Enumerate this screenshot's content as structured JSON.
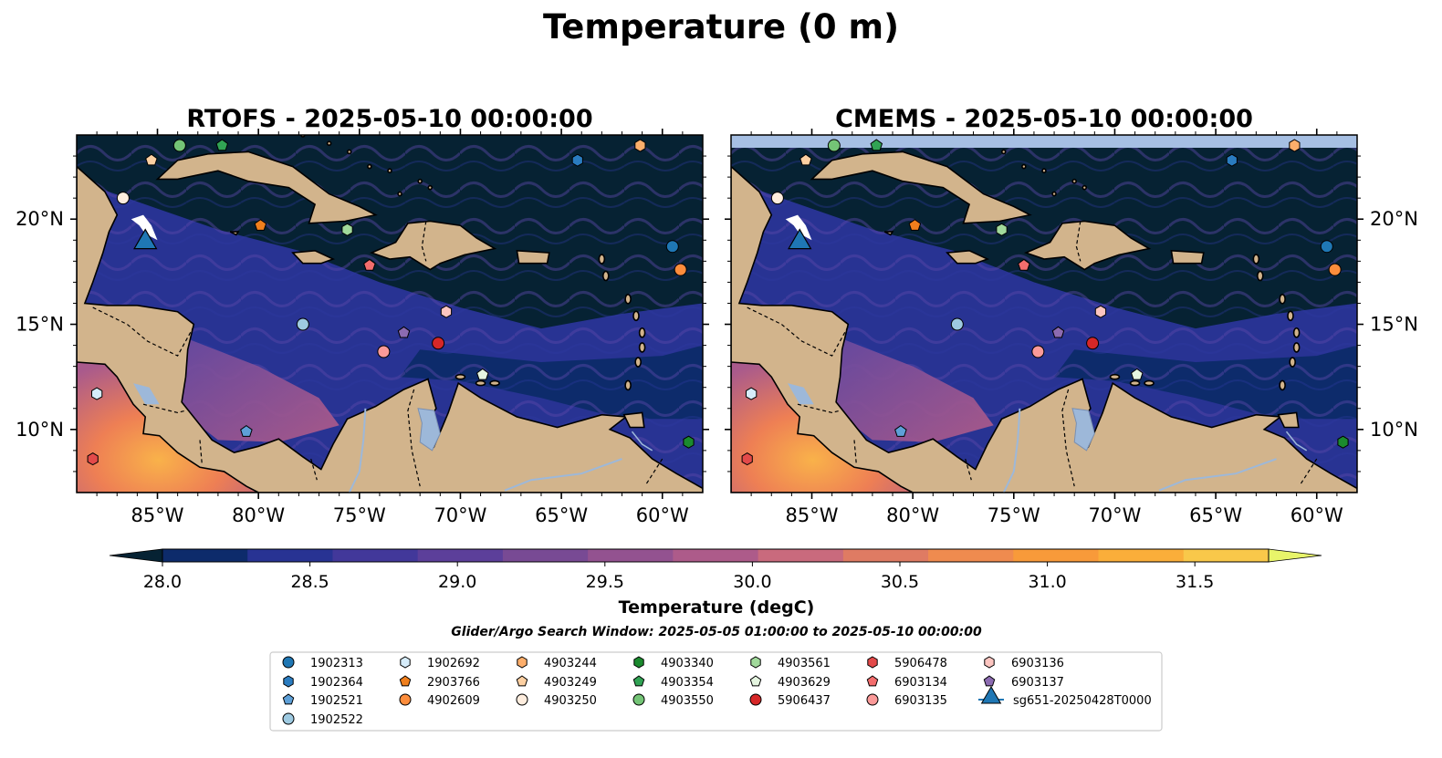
{
  "figure": {
    "suptitle": "Temperature (0 m)",
    "search_window_text": "Glider/Argo Search Window: 2025-05-05 01:00:00 to 2025-05-10 00:00:00"
  },
  "colors": {
    "land": "#d2b48c",
    "ocean_dark": "#062233",
    "coast": "#000000",
    "rivers_lakes": "#9db8d9",
    "glider_track": "#ffffff",
    "missing_data_band": "#a6bfe3"
  },
  "colorbar": {
    "label": "Temperature (degC)",
    "ticks": [
      "28.0",
      "28.5",
      "29.0",
      "29.5",
      "30.0",
      "30.5",
      "31.0",
      "31.5"
    ],
    "vmin": 28.0,
    "vmax": 31.75,
    "level_step": 0.25,
    "extend": "both",
    "colors": [
      "#062233",
      "#0d2b6b",
      "#283393",
      "#42389a",
      "#5c3f9a",
      "#784a94",
      "#935290",
      "#ad5b8a",
      "#c96a7d",
      "#df7b63",
      "#ef8b4f",
      "#f89a3a",
      "#faae3a",
      "#f9c84a",
      "#e8f56a"
    ]
  },
  "chart_data": [
    {
      "type": "map",
      "title": "RTOFS - 2025-05-10 00:00:00",
      "field": "Temperature (degC)",
      "extent_lon": [
        -89,
        -58
      ],
      "extent_lat": [
        7,
        24
      ],
      "xtick_labels": [
        "85°W",
        "80°W",
        "75°W",
        "70°W",
        "65°W",
        "60°W"
      ],
      "ytick_labels": [
        "10°N",
        "15°N",
        "20°N"
      ],
      "ytick_side": "left",
      "missing_band_top": false
    },
    {
      "type": "map",
      "title": "CMEMS - 2025-05-10 00:00:00",
      "field": "Temperature (degC)",
      "extent_lon": [
        -89,
        -58
      ],
      "extent_lat": [
        7,
        24
      ],
      "xtick_labels": [
        "85°W",
        "80°W",
        "75°W",
        "70°W",
        "65°W",
        "60°W"
      ],
      "ytick_labels": [
        "10°N",
        "15°N",
        "20°N"
      ],
      "ytick_side": "right",
      "missing_band_top": true
    }
  ],
  "floats": [
    {
      "id": "1902313",
      "marker": "circle",
      "color": "#1f77b4",
      "lon": -59.5,
      "lat": 18.7
    },
    {
      "id": "1902364",
      "marker": "hexagon",
      "color": "#2a7cc0",
      "lon": -64.2,
      "lat": 22.8
    },
    {
      "id": "1902521",
      "marker": "pentagon",
      "color": "#5ea0d8",
      "lon": -80.6,
      "lat": 9.9
    },
    {
      "id": "1902522",
      "marker": "circle",
      "color": "#9ecae1",
      "lon": -77.8,
      "lat": 15.0
    },
    {
      "id": "1902692",
      "marker": "hexagon",
      "color": "#d6ecfa",
      "lon": -88.0,
      "lat": 11.7
    },
    {
      "id": "2903766",
      "marker": "pentagon",
      "color": "#f07f1d",
      "lon": -79.9,
      "lat": 19.7
    },
    {
      "id": "4902609",
      "marker": "circle",
      "color": "#fd8d3c",
      "lon": -59.1,
      "lat": 17.6
    },
    {
      "id": "4903244",
      "marker": "hexagon",
      "color": "#fdae6b",
      "lon": -61.1,
      "lat": 23.5
    },
    {
      "id": "4903249",
      "marker": "pentagon",
      "color": "#fdd0a2",
      "lon": -85.3,
      "lat": 22.8
    },
    {
      "id": "4903250",
      "marker": "circle",
      "color": "#feedde",
      "lon": -86.7,
      "lat": 21.0
    },
    {
      "id": "4903340",
      "marker": "hexagon",
      "color": "#1b8a2e",
      "lon": -58.7,
      "lat": 9.4
    },
    {
      "id": "4903354",
      "marker": "pentagon",
      "color": "#31a354",
      "lon": -81.8,
      "lat": 23.5
    },
    {
      "id": "4903550",
      "marker": "circle",
      "color": "#74c476",
      "lon": -83.9,
      "lat": 23.5
    },
    {
      "id": "4903561",
      "marker": "hexagon",
      "color": "#a1d99b",
      "lon": -75.6,
      "lat": 19.5
    },
    {
      "id": "4903629",
      "marker": "pentagon",
      "color": "#e5f5e0",
      "lon": -68.9,
      "lat": 12.6
    },
    {
      "id": "5906437",
      "marker": "circle",
      "color": "#d62728",
      "lon": -71.1,
      "lat": 14.1
    },
    {
      "id": "5906478",
      "marker": "hexagon",
      "color": "#e34a4a",
      "lon": -88.2,
      "lat": 8.6
    },
    {
      "id": "6903134",
      "marker": "pentagon",
      "color": "#f46d6d",
      "lon": -74.5,
      "lat": 17.8
    },
    {
      "id": "6903135",
      "marker": "circle",
      "color": "#fb9a99",
      "lon": -73.8,
      "lat": 13.7
    },
    {
      "id": "6903136",
      "marker": "hexagon",
      "color": "#fcc5c0",
      "lon": -70.7,
      "lat": 15.6
    },
    {
      "id": "6903137",
      "marker": "pentagon",
      "color": "#8c6bb1",
      "lon": -72.8,
      "lat": 14.6
    }
  ],
  "glider": {
    "id": "sg651-20250428T0000",
    "marker": "triangle",
    "color": "#1f77b4",
    "lon": -85.6,
    "lat": 18.9
  },
  "legend_columns": [
    [
      "1902313",
      "1902364",
      "1902521",
      "1902522"
    ],
    [
      "1902692",
      "2903766",
      "4902609"
    ],
    [
      "4903244",
      "4903249",
      "4903250"
    ],
    [
      "4903340",
      "4903354",
      "4903550"
    ],
    [
      "4903561",
      "4903629",
      "5906437"
    ],
    [
      "5906478",
      "6903134",
      "6903135"
    ],
    [
      "6903136",
      "6903137",
      "sg651-20250428T0000"
    ]
  ]
}
